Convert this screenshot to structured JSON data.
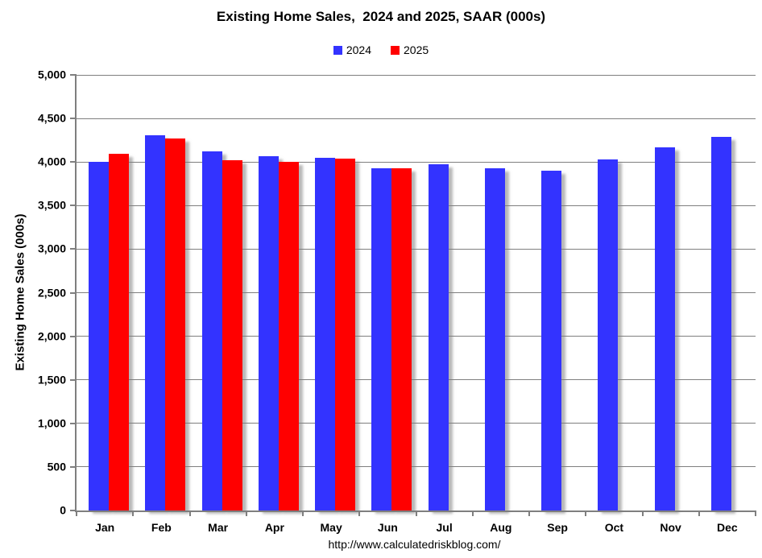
{
  "title": "Existing Home Sales,  2024 and 2025, SAAR (000s)",
  "footer": {
    "url_text": "http://www.calculatedriskblog.com/"
  },
  "colors": {
    "series_2024": "#3333ff",
    "series_2025": "#ff0000",
    "gridline": "#7f7f7f",
    "axis": "#7f7f7f",
    "text": "#000000"
  },
  "chart_data": {
    "type": "bar",
    "title": "Existing Home Sales,  2024 and 2025, SAAR (000s)",
    "xlabel": "",
    "ylabel": "Existing Home Sales (000s)",
    "ylim": [
      0,
      5000
    ],
    "ytick_interval": 500,
    "ytick_labels": [
      "0",
      "500",
      "1,000",
      "1,500",
      "2,000",
      "2,500",
      "3,000",
      "3,500",
      "4,000",
      "4,500",
      "5,000"
    ],
    "grid": true,
    "legend_position": "top-center",
    "categories": [
      "Jan",
      "Feb",
      "Mar",
      "Apr",
      "May",
      "Jun",
      "Jul",
      "Aug",
      "Sep",
      "Oct",
      "Nov",
      "Dec"
    ],
    "series": [
      {
        "name": "2024",
        "color": "#3333ff",
        "values": [
          4000,
          4310,
          4120,
          4070,
          4050,
          3930,
          3970,
          3930,
          3900,
          4030,
          4170,
          4290
        ]
      },
      {
        "name": "2025",
        "color": "#ff0000",
        "values": [
          4090,
          4270,
          4020,
          4000,
          4040,
          3930,
          null,
          null,
          null,
          null,
          null,
          null
        ]
      }
    ]
  }
}
